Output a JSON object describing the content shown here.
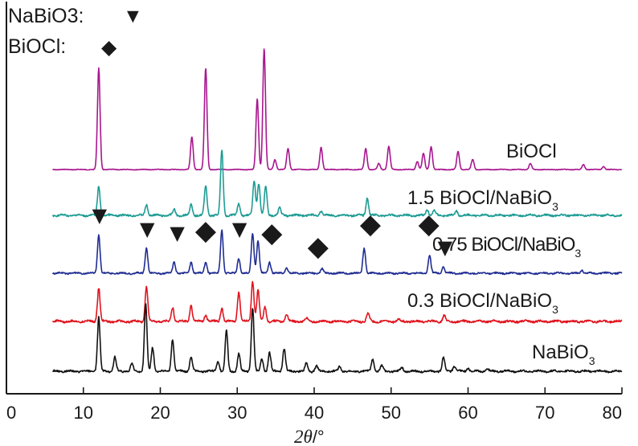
{
  "legend": {
    "nabio3": {
      "label": "NaBiO3:",
      "marker": "▼"
    },
    "biocl": {
      "label": "BiOCl:",
      "marker": "◆"
    }
  },
  "chart_data": {
    "type": "line",
    "xlabel_var": "2θ",
    "xlabel_unit": "/°",
    "xlim": [
      0,
      80
    ],
    "xticks": [
      0,
      10,
      20,
      30,
      40,
      50,
      60,
      70,
      80
    ],
    "grid": false,
    "y_axis": "arbitrary intensity, stacked, no tick labels",
    "series": [
      {
        "name": "BiOCl",
        "color": "#a8178f",
        "x_start": 6,
        "x_end": 80,
        "peaks": [
          [
            12.0,
            10.0
          ],
          [
            24.1,
            3.2
          ],
          [
            25.9,
            10.0
          ],
          [
            32.6,
            7.0
          ],
          [
            33.5,
            12.0
          ],
          [
            34.9,
            1.0
          ],
          [
            36.6,
            2.1
          ],
          [
            40.9,
            2.2
          ],
          [
            46.7,
            2.1
          ],
          [
            48.4,
            0.6
          ],
          [
            49.7,
            2.3
          ],
          [
            53.4,
            0.8
          ],
          [
            54.2,
            1.6
          ],
          [
            55.2,
            2.3
          ],
          [
            58.7,
            1.8
          ],
          [
            60.6,
            1.0
          ],
          [
            68.1,
            0.6
          ],
          [
            75.0,
            0.5
          ],
          [
            77.6,
            0.3
          ]
        ]
      },
      {
        "name": "1.5 BiOCl/NaBiO",
        "name_sub": "3",
        "color": "#1e9c94",
        "x_start": 6,
        "x_end": 80,
        "peaks": [
          [
            12.0,
            4.0
          ],
          [
            18.2,
            1.5
          ],
          [
            21.8,
            0.8
          ],
          [
            24.0,
            1.5
          ],
          [
            25.9,
            4.1
          ],
          [
            28.0,
            9.0
          ],
          [
            30.2,
            1.6
          ],
          [
            32.2,
            4.7
          ],
          [
            32.8,
            4.4
          ],
          [
            33.7,
            4.0
          ],
          [
            35.5,
            1.0
          ],
          [
            40.9,
            0.6
          ],
          [
            46.9,
            2.4
          ],
          [
            54.7,
            0.8
          ],
          [
            55.6,
            0.7
          ],
          [
            58.5,
            0.6
          ]
        ]
      },
      {
        "name": "0.75 BiOCl/NaBiO",
        "name_sub": "3",
        "color": "#1f2d92",
        "x_start": 6,
        "x_end": 80,
        "peaks": [
          [
            12.0,
            5.2
          ],
          [
            18.2,
            3.4
          ],
          [
            21.8,
            1.5
          ],
          [
            24.0,
            1.5
          ],
          [
            25.9,
            1.5
          ],
          [
            28.0,
            5.8
          ],
          [
            30.2,
            2.0
          ],
          [
            32.0,
            5.4
          ],
          [
            32.7,
            4.4
          ],
          [
            34.2,
            1.5
          ],
          [
            36.4,
            0.8
          ],
          [
            41.0,
            0.6
          ],
          [
            46.5,
            3.4
          ],
          [
            55.0,
            2.4
          ],
          [
            56.8,
            0.9
          ],
          [
            74.8,
            0.4
          ]
        ]
      },
      {
        "name": "0.3 BiOCl/NaBiO",
        "name_sub": "3",
        "color": "#e0141e",
        "x_start": 6,
        "x_end": 80,
        "peaks": [
          [
            12.0,
            5.0
          ],
          [
            18.2,
            5.2
          ],
          [
            21.6,
            2.1
          ],
          [
            24.0,
            2.4
          ],
          [
            25.9,
            1.0
          ],
          [
            28.0,
            2.0
          ],
          [
            30.2,
            4.4
          ],
          [
            32.0,
            6.0
          ],
          [
            32.7,
            4.6
          ],
          [
            33.6,
            2.2
          ],
          [
            36.4,
            1.1
          ],
          [
            39.0,
            0.4
          ],
          [
            47.0,
            1.2
          ],
          [
            51.0,
            0.3
          ],
          [
            56.9,
            0.9
          ]
        ]
      },
      {
        "name": "NaBiO",
        "name_sub": "3",
        "color": "#111111",
        "x_start": 6,
        "x_end": 80,
        "peaks": [
          [
            12.0,
            8.0
          ],
          [
            14.1,
            2.1
          ],
          [
            16.3,
            1.1
          ],
          [
            18.1,
            10.0
          ],
          [
            19.0,
            3.5
          ],
          [
            21.6,
            4.8
          ],
          [
            24.0,
            2.2
          ],
          [
            27.5,
            1.6
          ],
          [
            28.6,
            6.0
          ],
          [
            30.2,
            2.6
          ],
          [
            32.0,
            9.5
          ],
          [
            33.2,
            1.8
          ],
          [
            34.2,
            2.8
          ],
          [
            36.1,
            3.4
          ],
          [
            39.0,
            1.2
          ],
          [
            40.3,
            0.8
          ],
          [
            43.3,
            0.7
          ],
          [
            47.6,
            1.8
          ],
          [
            48.8,
            0.8
          ],
          [
            51.4,
            0.6
          ],
          [
            56.8,
            2.0
          ],
          [
            58.2,
            0.8
          ],
          [
            60.0,
            0.5
          ],
          [
            62.5,
            0.4
          ]
        ]
      }
    ],
    "markers": [
      {
        "phase": "NaBiO3",
        "symbol": "▼",
        "x": 12.1
      },
      {
        "phase": "NaBiO3",
        "symbol": "▼",
        "x": 18.3
      },
      {
        "phase": "NaBiO3",
        "symbol": "▼",
        "x": 22.2
      },
      {
        "phase": "BiOCl",
        "symbol": "◆",
        "x": 25.9
      },
      {
        "phase": "NaBiO3",
        "symbol": "▼",
        "x": 30.3
      },
      {
        "phase": "BiOCl",
        "symbol": "◆",
        "x": 34.5
      },
      {
        "phase": "BiOCl",
        "symbol": "◆",
        "x": 40.5
      },
      {
        "phase": "BiOCl",
        "symbol": "◆",
        "x": 47.3
      },
      {
        "phase": "BiOCl",
        "symbol": "◆",
        "x": 54.9
      },
      {
        "phase": "NaBiO3",
        "symbol": "▼",
        "x": 57.0
      }
    ]
  }
}
